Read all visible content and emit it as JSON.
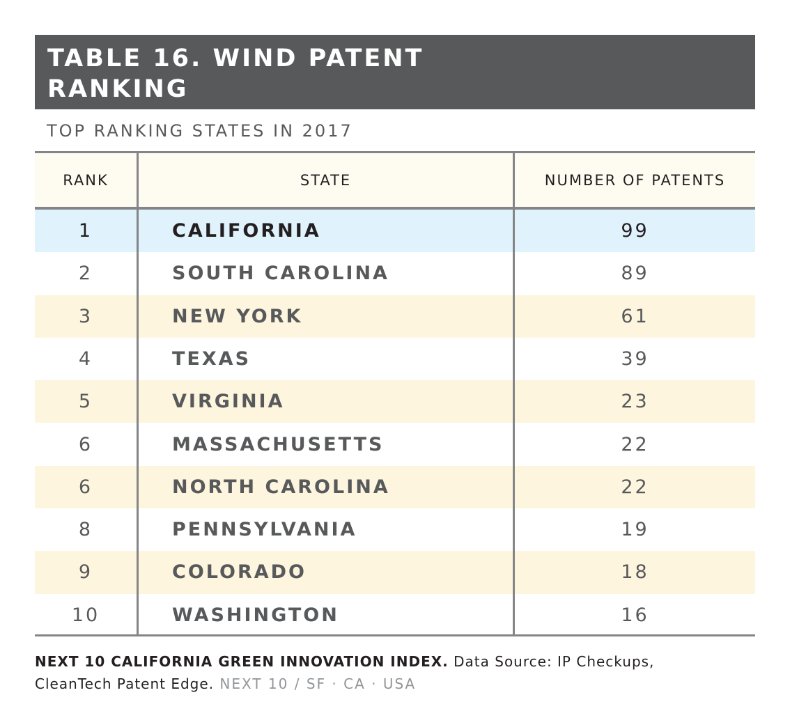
{
  "title": {
    "line1": "TABLE 16. WIND PATENT",
    "line2": "RANKING"
  },
  "subtitle": "TOP RANKING STATES IN 2017",
  "colors": {
    "title_bg": "#58595b",
    "header_bg": "#fefcf1",
    "highlight_row": "#e0f2fc",
    "alt_row": "#fdf5de",
    "rule": "#848587"
  },
  "chart_data": {
    "type": "table",
    "columns": [
      "RANK",
      "STATE",
      "NUMBER OF PATENTS"
    ],
    "rows": [
      {
        "rank": "1",
        "state": "CALIFORNIA",
        "patents": "99",
        "highlight": true
      },
      {
        "rank": "2",
        "state": "SOUTH CAROLINA",
        "patents": "89"
      },
      {
        "rank": "3",
        "state": "NEW YORK",
        "patents": "61"
      },
      {
        "rank": "4",
        "state": "TEXAS",
        "patents": "39"
      },
      {
        "rank": "5",
        "state": "VIRGINIA",
        "patents": "23"
      },
      {
        "rank": "6",
        "state": "MASSACHUSETTS",
        "patents": "22"
      },
      {
        "rank": "6",
        "state": "NORTH CAROLINA",
        "patents": "22"
      },
      {
        "rank": "8",
        "state": "PENNSYLVANIA",
        "patents": "19"
      },
      {
        "rank": "9",
        "state": "COLORADO",
        "patents": "18"
      },
      {
        "rank": "10",
        "state": "WASHINGTON",
        "patents": "16"
      }
    ]
  },
  "footer": {
    "bold": "NEXT 10 CALIFORNIA GREEN INNOVATION INDEX.",
    "source_line1": " Data Source: IP Checkups,",
    "source_line2": "CleanTech Patent Edge",
    "period": ".",
    "tag": " NEXT 10 / SF · CA · USA"
  }
}
